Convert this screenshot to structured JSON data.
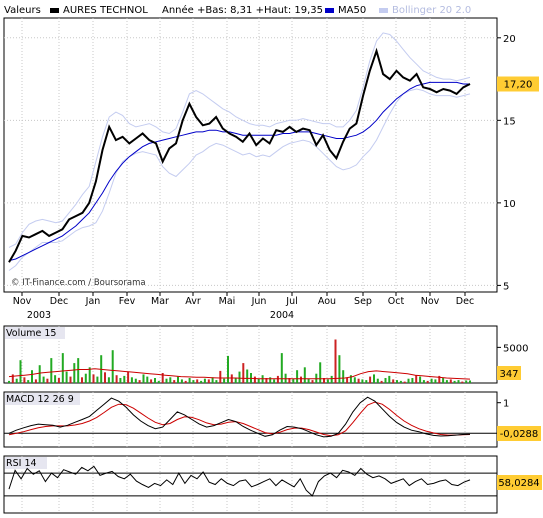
{
  "header": {
    "label": "Valeurs",
    "security_name": "AURES TECHNOL",
    "range_text": "Année +Bas: 8,31 +Haut: 19,35",
    "ma_label": "MA50",
    "bollinger_label": "Bollinger 20 2.0"
  },
  "colors": {
    "price": "#000000",
    "ma": "#0000c8",
    "bollinger": "#c4ccf0",
    "volume_up": "#22aa22",
    "volume_down": "#cc2222",
    "volume_ma": "#cc0000",
    "macd": "#000000",
    "signal": "#cc0000",
    "panel_label_bg": "#e6e6f0"
  },
  "watermark": "© IT-Finance.com / Boursorama",
  "chart_data": [
    {
      "type": "line",
      "name": "price",
      "x_labels": [
        "Nov",
        "Dec",
        "Jan",
        "Fev",
        "Mar",
        "Avr",
        "Mai",
        "Jun",
        "Jul",
        "Aou",
        "Sep",
        "Oct",
        "Nov",
        "Dec"
      ],
      "x_year_labels": [
        "2003",
        "2004"
      ],
      "y_ticks": [
        5,
        10,
        15,
        20
      ],
      "ylim": [
        4.6,
        21.2
      ],
      "last_value": "17,20",
      "series": [
        {
          "name": "AURES TECHNOL",
          "values": [
            6.4,
            7.1,
            8.0,
            7.9,
            8.1,
            8.3,
            8.0,
            8.2,
            8.4,
            9.0,
            9.2,
            9.4,
            10.0,
            11.3,
            13.2,
            14.6,
            13.8,
            14.0,
            13.6,
            13.9,
            14.2,
            13.8,
            13.6,
            12.5,
            13.3,
            13.6,
            15.0,
            16.0,
            15.2,
            14.7,
            14.8,
            15.2,
            14.5,
            14.2,
            14.0,
            13.7,
            14.2,
            13.5,
            13.9,
            13.6,
            14.4,
            14.3,
            14.6,
            14.3,
            14.5,
            14.4,
            13.5,
            14.1,
            13.2,
            12.7,
            13.7,
            14.5,
            14.8,
            16.5,
            18.0,
            19.2,
            17.8,
            17.5,
            18.0,
            17.6,
            17.4,
            17.8,
            17.0,
            16.9,
            16.7,
            16.9,
            16.8,
            16.6,
            17.0,
            17.2
          ]
        },
        {
          "name": "MA50",
          "values": [
            6.5,
            6.6,
            6.8,
            7.0,
            7.2,
            7.4,
            7.6,
            7.8,
            8.0,
            8.3,
            8.6,
            9.0,
            9.4,
            10.0,
            10.6,
            11.3,
            11.9,
            12.4,
            12.8,
            13.1,
            13.4,
            13.6,
            13.7,
            13.8,
            13.9,
            14.0,
            14.1,
            14.2,
            14.3,
            14.3,
            14.4,
            14.4,
            14.3,
            14.3,
            14.2,
            14.1,
            14.1,
            14.1,
            14.1,
            14.1,
            14.1,
            14.2,
            14.2,
            14.3,
            14.3,
            14.3,
            14.2,
            14.1,
            14.0,
            13.9,
            13.9,
            14.0,
            14.1,
            14.3,
            14.6,
            15.0,
            15.5,
            15.9,
            16.3,
            16.6,
            16.9,
            17.1,
            17.2,
            17.3,
            17.3,
            17.3,
            17.3,
            17.3,
            17.2,
            17.2
          ]
        },
        {
          "name": "Bollinger upper",
          "values": [
            7.3,
            7.5,
            8.2,
            8.7,
            8.9,
            9.0,
            8.9,
            8.8,
            8.9,
            9.4,
            9.9,
            10.5,
            11.0,
            12.5,
            14.0,
            15.2,
            15.5,
            15.3,
            14.8,
            14.6,
            14.7,
            14.8,
            14.6,
            14.3,
            14.2,
            14.5,
            15.5,
            16.6,
            16.8,
            16.6,
            16.3,
            16.0,
            15.7,
            15.5,
            15.2,
            15.0,
            14.8,
            14.7,
            14.7,
            14.6,
            14.8,
            14.9,
            15.0,
            15.0,
            15.1,
            15.0,
            14.9,
            14.8,
            14.8,
            14.6,
            14.6,
            15.0,
            15.6,
            17.0,
            18.6,
            19.8,
            20.3,
            20.2,
            19.8,
            19.3,
            18.8,
            18.4,
            18.0,
            17.8,
            17.6,
            17.5,
            17.5,
            17.4,
            17.5,
            17.6
          ]
        },
        {
          "name": "Bollinger lower",
          "values": [
            5.9,
            6.2,
            6.7,
            7.0,
            7.3,
            7.6,
            7.6,
            7.6,
            7.7,
            8.0,
            8.3,
            8.5,
            8.6,
            8.8,
            9.5,
            10.6,
            11.8,
            12.5,
            12.8,
            13.0,
            13.1,
            13.0,
            12.9,
            12.2,
            11.8,
            11.6,
            12.0,
            12.4,
            12.9,
            13.1,
            13.4,
            13.6,
            13.5,
            13.3,
            13.1,
            12.9,
            13.0,
            12.8,
            12.9,
            12.8,
            13.1,
            13.4,
            13.6,
            13.7,
            13.8,
            13.7,
            13.4,
            13.0,
            12.6,
            12.2,
            12.0,
            12.1,
            12.3,
            12.8,
            13.2,
            13.8,
            14.6,
            15.4,
            16.1,
            16.6,
            16.8,
            16.9,
            16.8,
            16.6,
            16.5,
            16.5,
            16.5,
            16.4,
            16.5,
            16.6
          ]
        }
      ]
    },
    {
      "type": "bar",
      "name": "volume",
      "title": "Volume 15",
      "y_ticks": [
        5000
      ],
      "ylim": [
        0,
        8000
      ],
      "last_value": "347",
      "values": [
        300,
        1200,
        600,
        3200,
        800,
        400,
        1800,
        500,
        2500,
        900,
        600,
        3500,
        1100,
        700,
        4200,
        1600,
        900,
        2800,
        3500,
        800,
        1300,
        2200,
        1200,
        900,
        3900,
        1500,
        800,
        4600,
        1100,
        700,
        1000,
        1600,
        800,
        600,
        400,
        1200,
        900,
        500,
        700,
        300,
        1400,
        600,
        800,
        400,
        900,
        500,
        300,
        700,
        400,
        500,
        300,
        600,
        500,
        800,
        400,
        1700,
        600,
        3800,
        1200,
        700,
        1600,
        2800,
        1900,
        1400,
        900,
        600,
        1100,
        700,
        800,
        500,
        1000,
        4200,
        1300,
        700,
        600,
        1800,
        900,
        2200,
        600,
        400,
        1300,
        2900,
        700,
        500,
        1000,
        6100,
        3900,
        1800,
        700,
        1100,
        800,
        600,
        500,
        400,
        900,
        1200,
        600,
        300,
        700,
        1000,
        500,
        400,
        300,
        200,
        600,
        700,
        1100,
        900,
        400,
        300,
        600,
        500,
        1000,
        700,
        400,
        500,
        300,
        400,
        200,
        350,
        347
      ],
      "ma_values": [
        900,
        1000,
        1100,
        1200,
        1400,
        1500,
        1600,
        1700,
        1800,
        1900,
        1900,
        2000,
        1900,
        1800,
        1700,
        1600,
        1500,
        1400,
        1300,
        1200,
        1100,
        1000,
        900,
        850,
        800,
        800,
        750,
        700,
        700,
        700,
        650,
        650,
        600,
        600,
        600,
        600,
        600,
        600,
        600,
        600,
        600,
        600,
        650,
        700,
        900,
        1300,
        1600,
        1700,
        1600,
        1500,
        1400,
        1300,
        1100,
        1000,
        900,
        800,
        700,
        650,
        600,
        550
      ]
    },
    {
      "type": "line",
      "name": "macd",
      "title": "MACD 12 26 9",
      "y_ticks": [
        1
      ],
      "ylim": [
        -0.45,
        1.35
      ],
      "last_value": "-0,0288",
      "series": [
        {
          "name": "MACD",
          "values": [
            0.0,
            0.1,
            0.18,
            0.25,
            0.3,
            0.28,
            0.26,
            0.2,
            0.26,
            0.36,
            0.45,
            0.55,
            0.75,
            0.95,
            1.15,
            1.05,
            0.85,
            0.6,
            0.4,
            0.25,
            0.15,
            0.2,
            0.45,
            0.7,
            0.6,
            0.45,
            0.3,
            0.2,
            0.25,
            0.35,
            0.45,
            0.38,
            0.22,
            0.1,
            0.0,
            -0.1,
            -0.05,
            0.1,
            0.22,
            0.2,
            0.15,
            0.05,
            -0.05,
            -0.12,
            -0.1,
            0.0,
            0.3,
            0.7,
            1.0,
            1.18,
            1.05,
            0.8,
            0.55,
            0.35,
            0.2,
            0.1,
            0.05,
            -0.02,
            -0.07,
            -0.09,
            -0.08,
            -0.06,
            -0.04,
            -0.03
          ]
        },
        {
          "name": "Signal",
          "values": [
            -0.05,
            0.0,
            0.05,
            0.12,
            0.18,
            0.22,
            0.24,
            0.24,
            0.24,
            0.27,
            0.32,
            0.4,
            0.52,
            0.68,
            0.85,
            0.95,
            0.93,
            0.82,
            0.66,
            0.5,
            0.36,
            0.28,
            0.32,
            0.45,
            0.54,
            0.52,
            0.44,
            0.34,
            0.28,
            0.3,
            0.36,
            0.38,
            0.32,
            0.22,
            0.12,
            0.02,
            -0.02,
            0.03,
            0.12,
            0.17,
            0.17,
            0.12,
            0.04,
            -0.04,
            -0.08,
            -0.05,
            0.08,
            0.35,
            0.65,
            0.92,
            1.02,
            0.95,
            0.78,
            0.58,
            0.4,
            0.26,
            0.15,
            0.07,
            0.01,
            -0.04,
            -0.06,
            -0.06,
            -0.05,
            -0.04
          ]
        }
      ]
    },
    {
      "type": "line",
      "name": "rsi",
      "title": "RSI 14",
      "ylim": [
        0,
        100
      ],
      "last_value": "58,0284",
      "values": [
        42,
        75,
        60,
        78,
        68,
        74,
        55,
        70,
        62,
        76,
        72,
        68,
        80,
        74,
        82,
        66,
        70,
        73,
        64,
        60,
        68,
        56,
        50,
        45,
        52,
        48,
        58,
        50,
        70,
        52,
        66,
        60,
        72,
        54,
        50,
        60,
        52,
        48,
        56,
        58,
        46,
        50,
        55,
        60,
        48,
        58,
        52,
        46,
        60,
        40,
        30,
        55,
        65,
        70,
        62,
        75,
        72,
        66,
        78,
        68,
        62,
        65,
        60,
        52,
        56,
        60,
        48,
        55,
        60,
        50,
        52,
        56,
        58,
        50,
        48,
        54,
        58
      ]
    }
  ]
}
